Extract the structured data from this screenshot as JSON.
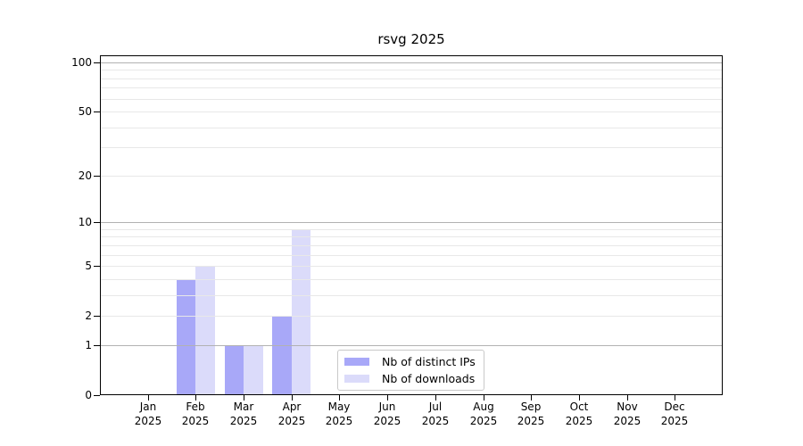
{
  "chart_data": {
    "type": "bar",
    "title": "rsvg 2025",
    "categories": [
      {
        "month": "Jan",
        "year": "2025"
      },
      {
        "month": "Feb",
        "year": "2025"
      },
      {
        "month": "Mar",
        "year": "2025"
      },
      {
        "month": "Apr",
        "year": "2025"
      },
      {
        "month": "May",
        "year": "2025"
      },
      {
        "month": "Jun",
        "year": "2025"
      },
      {
        "month": "Jul",
        "year": "2025"
      },
      {
        "month": "Aug",
        "year": "2025"
      },
      {
        "month": "Sep",
        "year": "2025"
      },
      {
        "month": "Oct",
        "year": "2025"
      },
      {
        "month": "Nov",
        "year": "2025"
      },
      {
        "month": "Dec",
        "year": "2025"
      }
    ],
    "series": [
      {
        "name": "Nb of distinct IPs",
        "slug": "distinct-ips",
        "color": "#a8a8f8",
        "values": [
          0,
          4,
          1,
          2,
          0,
          0,
          0,
          0,
          0,
          0,
          0,
          0
        ]
      },
      {
        "name": "Nb of downloads",
        "slug": "downloads",
        "color": "#dbdbfa",
        "values": [
          0,
          5,
          1,
          9,
          0,
          0,
          0,
          0,
          0,
          0,
          0,
          0
        ]
      }
    ],
    "xlabel": "",
    "ylabel": "",
    "y_scale": "log10(1+x)",
    "ylim": [
      0,
      110
    ],
    "y_ticks": [
      0,
      1,
      2,
      5,
      10,
      20,
      50,
      100
    ],
    "y_gridlines": {
      "major": [
        1,
        10,
        100
      ],
      "minor": [
        2,
        3,
        4,
        5,
        6,
        7,
        8,
        9,
        20,
        30,
        40,
        50,
        60,
        70,
        80,
        90
      ]
    },
    "grid": "on",
    "legend_position": "lower center inside plot"
  }
}
